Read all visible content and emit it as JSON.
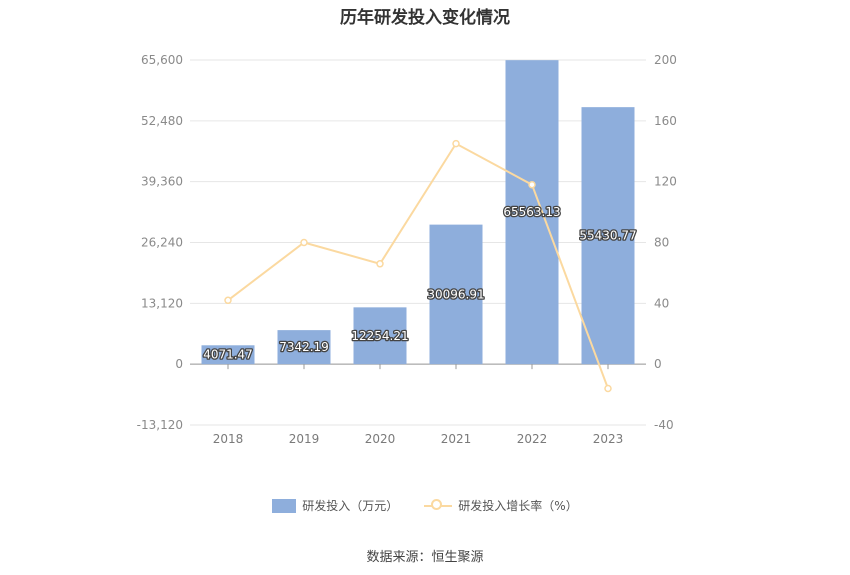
{
  "chart_data": {
    "type": "bar",
    "title": "历年研发投入变化情况",
    "categories": [
      "2018",
      "2019",
      "2020",
      "2021",
      "2022",
      "2023"
    ],
    "series": [
      {
        "name": "研发投入（万元）",
        "type": "bar",
        "axis": "left",
        "color": "#8eaedc",
        "values": [
          4071.47,
          7342.19,
          12254.21,
          30096.91,
          65563.13,
          55430.77
        ],
        "labels": [
          "4071.47",
          "7342.19",
          "12254.21",
          "30096.91",
          "65563.13",
          "55430.77"
        ]
      },
      {
        "name": "研发投入增长率（%）",
        "type": "line",
        "axis": "right",
        "color": "#fbd9a0",
        "values": [
          42,
          80,
          66,
          145,
          118,
          -16
        ]
      }
    ],
    "y_left": {
      "min": -13120,
      "max": 65600,
      "ticks": [
        "65,600",
        "52,480",
        "39,360",
        "26,240",
        "13,120",
        "0",
        "-13,120"
      ]
    },
    "y_right": {
      "min": -40,
      "max": 200,
      "ticks": [
        "200",
        "160",
        "120",
        "80",
        "40",
        "0",
        "-40"
      ]
    },
    "grid": true,
    "legend_position": "bottom-center"
  },
  "source_text": "数据来源：恒生聚源"
}
